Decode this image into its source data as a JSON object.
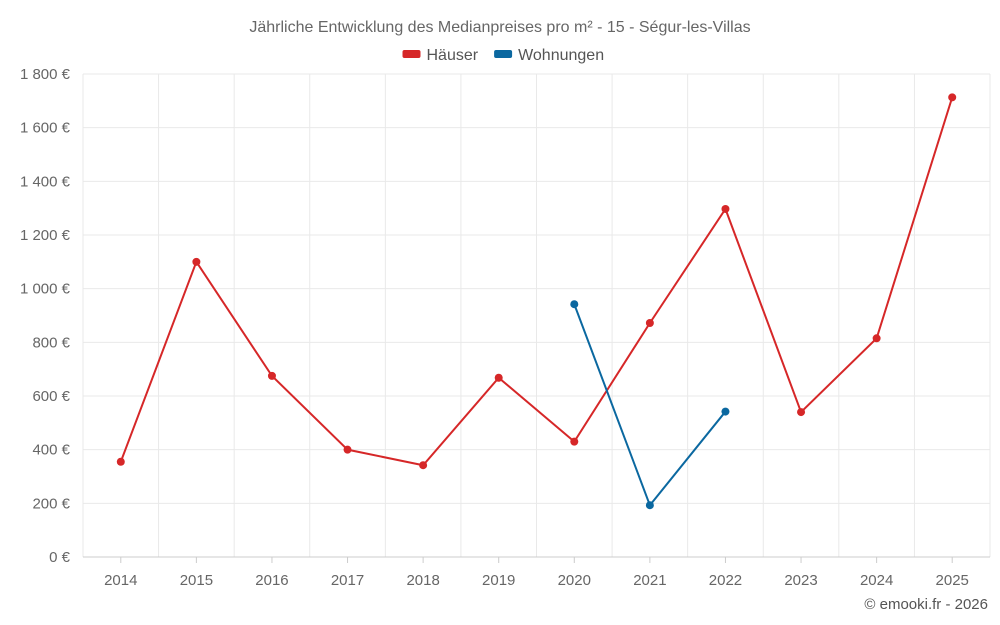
{
  "chart_data": {
    "type": "line",
    "title": "Jährliche Entwicklung des Medianpreises pro m² - 15 - Ségur-les-Villas",
    "categories": [
      "2014",
      "2015",
      "2016",
      "2017",
      "2018",
      "2019",
      "2020",
      "2021",
      "2022",
      "2023",
      "2024",
      "2025"
    ],
    "series": [
      {
        "name": "Häuser",
        "color": "#d62728",
        "values": [
          355,
          1100,
          675,
          400,
          342,
          668,
          430,
          872,
          1297,
          540,
          815,
          1713
        ]
      },
      {
        "name": "Wohnungen",
        "color": "#0b68a0",
        "values": [
          null,
          null,
          null,
          null,
          null,
          null,
          942,
          193,
          542,
          null,
          null,
          null
        ]
      }
    ],
    "ylim": [
      0,
      1800
    ],
    "yticks": [
      0,
      200,
      400,
      600,
      800,
      1000,
      1200,
      1400,
      1600,
      1800
    ],
    "ytick_labels": [
      "0 €",
      "200 €",
      "400 €",
      "600 €",
      "800 €",
      "1 000 €",
      "1 200 €",
      "1 400 €",
      "1 600 €",
      "1 800 €"
    ],
    "xlabel": "",
    "ylabel": "",
    "legend_position": "top-center",
    "grid": true
  },
  "credit": "© emooki.fr - 2026"
}
